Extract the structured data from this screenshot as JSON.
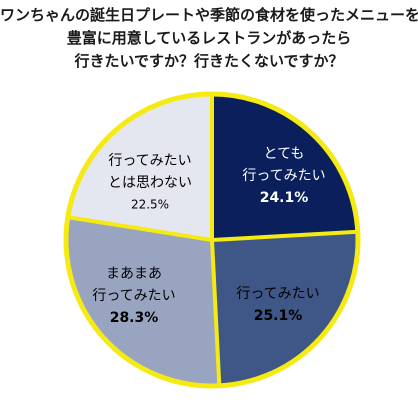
{
  "title_lines": [
    "ワンちゃんの誕生日プレートや季節の食材を使ったメニューを",
    "豊富に用意しているレストランがあったら",
    "行きたいですか？行きたくないですか？"
  ],
  "chart_data": {
    "type": "pie",
    "start": "12 o'clock",
    "direction": "clockwise",
    "slices": [
      {
        "label_lines": [
          "とても",
          "行ってみたい"
        ],
        "value": 24.1,
        "value_label": "24.1%",
        "color": "#0a1f5c",
        "text_color": "#ffffff"
      },
      {
        "label_lines": [
          "行ってみたい"
        ],
        "value": 25.1,
        "value_label": "25.1%",
        "color": "#3e5787",
        "text_color": "#000000"
      },
      {
        "label_lines": [
          "まあまあ",
          "行ってみたい"
        ],
        "value": 28.3,
        "value_label": "28.3%",
        "color": "#99a5c0",
        "text_color": "#000000"
      },
      {
        "label_lines": [
          "行ってみたい",
          "とは思わない"
        ],
        "value": 22.5,
        "value_label": "22.5%",
        "color": "#e4e7ef",
        "text_color": "#000000"
      }
    ],
    "outline_color": "#f5ea12",
    "separator_color": "#f5ea12"
  }
}
